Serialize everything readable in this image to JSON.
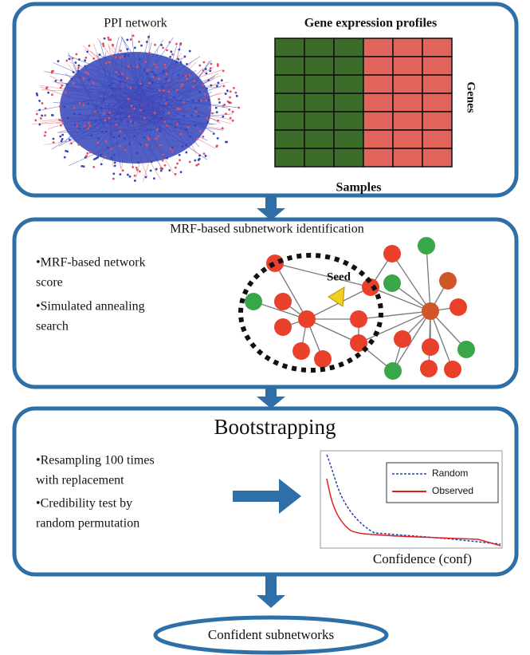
{
  "panels": [
    {
      "network_label": "PPI network",
      "expression_label": "Gene expression profiles",
      "genes_label": "Genes",
      "samples_label": "Samples"
    },
    {
      "title": "MRF-based subnetwork identification",
      "bullets": [
        [
          "•MRF-based network",
          "score"
        ],
        [
          "•Simulated annealing",
          "search"
        ]
      ],
      "seed_label": "Seed"
    },
    {
      "title": "Bootstrapping",
      "bullets": [
        [
          "•Resampling 100 times",
          "with replacement"
        ],
        [
          "•Credibility test by",
          "random permutation"
        ]
      ],
      "legend": [
        "Random",
        "Observed"
      ],
      "x_label": "Confidence (conf)"
    }
  ],
  "output": "Confident subnetworks"
}
